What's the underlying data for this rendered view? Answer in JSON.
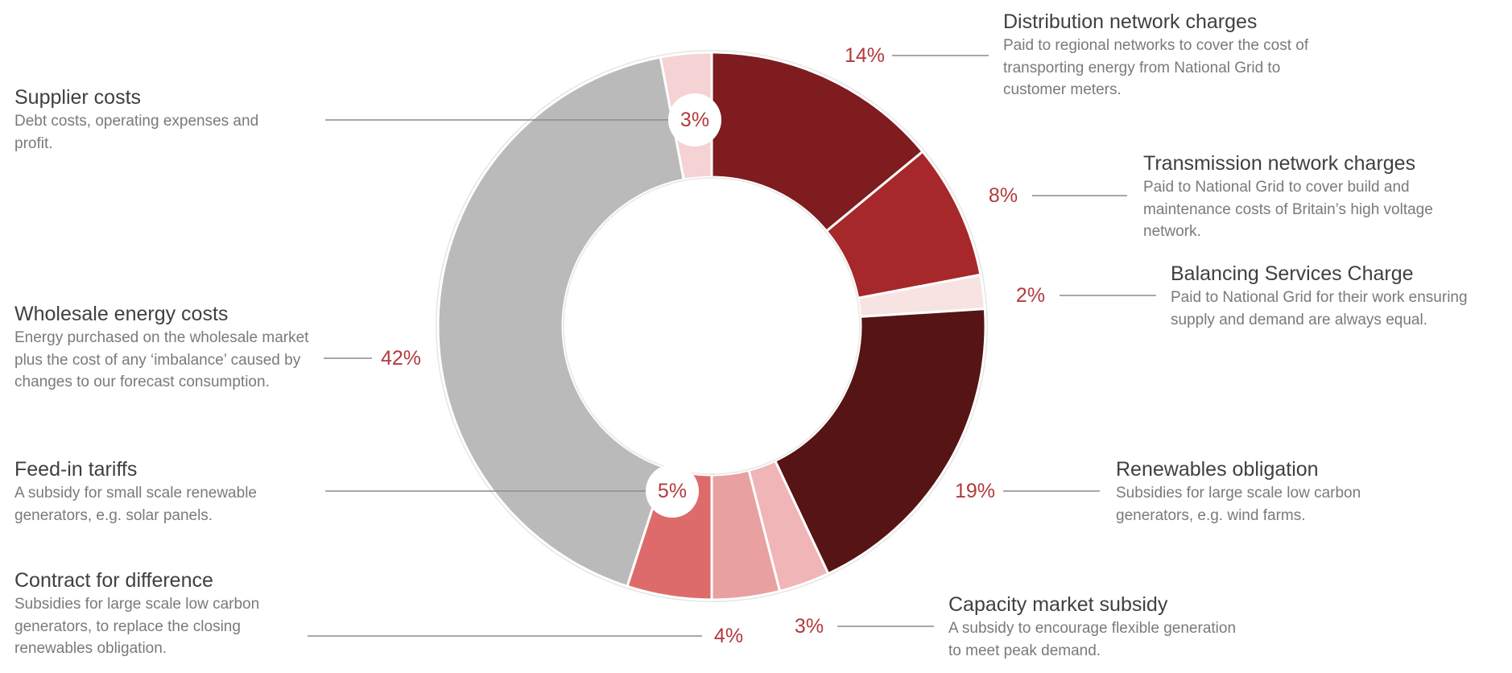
{
  "chart_data": {
    "type": "donut",
    "title": "",
    "segments": [
      {
        "name": "Distribution network charges",
        "description": "Paid to regional networks to cover the cost of transporting energy from National Grid to customer meters.",
        "value": 14,
        "label": "14%",
        "color": "#7e1c1f"
      },
      {
        "name": "Transmission network charges",
        "description": "Paid to National Grid to cover build and maintenance costs of Britain’s high voltage network.",
        "value": 8,
        "label": "8%",
        "color": "#a6282a"
      },
      {
        "name": "Balancing Services Charge",
        "description": "Paid to National Grid for their work ensuring supply and demand are always equal.",
        "value": 2,
        "label": "2%",
        "color": "#f8e3e3"
      },
      {
        "name": "Renewables obligation",
        "description": "Subsidies for large scale low carbon generators, e.g. wind farms.",
        "value": 19,
        "label": "19%",
        "color": "#561415"
      },
      {
        "name": "Capacity market subsidy",
        "description": "A subsidy to encourage flexible generation to meet peak demand.",
        "value": 3,
        "label": "3%",
        "color": "#f0b5b7"
      },
      {
        "name": "Contract for difference",
        "description": "Subsidies for large scale low carbon generators, to replace the closing renewables obligation.",
        "value": 4,
        "label": "4%",
        "color": "#e8a0a0"
      },
      {
        "name": "Feed-in tariffs",
        "description": "A subsidy for small scale renewable generators, e.g. solar panels.",
        "value": 5,
        "label": "5%",
        "color": "#dd6b6b"
      },
      {
        "name": "Wholesale energy costs",
        "description": "Energy purchased on the wholesale market plus the cost of any ‘imbalance’ caused by changes to our forecast consumption.",
        "value": 42,
        "label": "42%",
        "color": "#bababa"
      },
      {
        "name": "Supplier costs",
        "description": "Debt costs, operating expenses and profit.",
        "value": 3,
        "label": "3%",
        "color": "#f5d2d3"
      }
    ]
  }
}
